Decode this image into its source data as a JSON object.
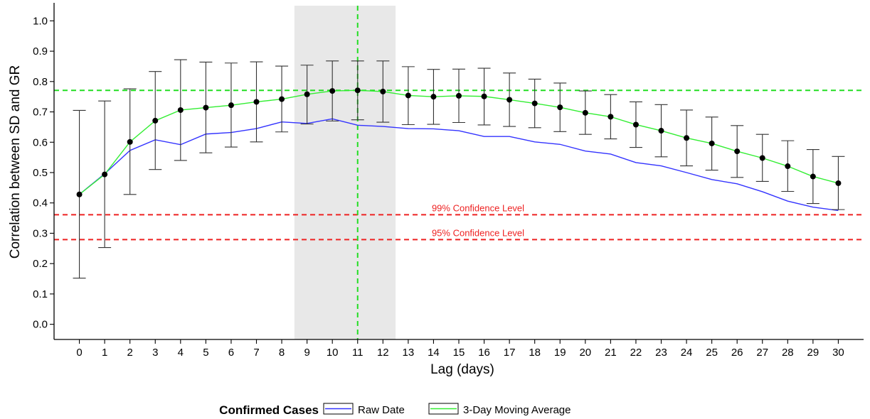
{
  "chart_data": {
    "type": "line",
    "xlabel": "Lag (days)",
    "ylabel": "Correlation between SD and GR",
    "x": [
      0,
      1,
      2,
      3,
      4,
      5,
      6,
      7,
      8,
      9,
      10,
      11,
      12,
      13,
      14,
      15,
      16,
      17,
      18,
      19,
      20,
      21,
      22,
      23,
      24,
      25,
      26,
      27,
      28,
      29,
      30
    ],
    "xlim": [
      -1,
      31
    ],
    "ylim": [
      -0.05,
      1.05
    ],
    "yticks": [
      0.0,
      0.1,
      0.2,
      0.3,
      0.4,
      0.5,
      0.6,
      0.7,
      0.8,
      0.9,
      1.0
    ],
    "ytick_labels": [
      "0.0",
      "0.1",
      "0.2",
      "0.3",
      "0.4",
      "0.5",
      "0.6",
      "0.7",
      "0.8",
      "0.9",
      "1.0"
    ],
    "series": [
      {
        "name": "Raw Date",
        "color": "#3333ff",
        "values": [
          0.428,
          0.496,
          0.573,
          0.608,
          0.592,
          0.627,
          0.632,
          0.645,
          0.667,
          0.662,
          0.677,
          0.656,
          0.652,
          0.645,
          0.644,
          0.638,
          0.619,
          0.619,
          0.601,
          0.593,
          0.571,
          0.561,
          0.533,
          0.522,
          0.5,
          0.477,
          0.463,
          0.437,
          0.406,
          0.386,
          0.375
        ]
      },
      {
        "name": "3-Day Moving Average",
        "color": "#33ee33",
        "values": [
          0.428,
          0.494,
          0.601,
          0.671,
          0.706,
          0.714,
          0.722,
          0.733,
          0.742,
          0.758,
          0.769,
          0.771,
          0.767,
          0.754,
          0.75,
          0.753,
          0.751,
          0.74,
          0.728,
          0.715,
          0.697,
          0.684,
          0.658,
          0.638,
          0.614,
          0.596,
          0.57,
          0.548,
          0.521,
          0.487,
          0.465
        ],
        "lower": [
          0.152,
          0.253,
          0.428,
          0.51,
          0.54,
          0.565,
          0.584,
          0.601,
          0.634,
          0.66,
          0.67,
          0.674,
          0.666,
          0.658,
          0.659,
          0.665,
          0.657,
          0.652,
          0.648,
          0.635,
          0.626,
          0.611,
          0.583,
          0.552,
          0.522,
          0.508,
          0.484,
          0.471,
          0.438,
          0.398,
          0.378
        ],
        "upper": [
          0.705,
          0.736,
          0.776,
          0.833,
          0.872,
          0.864,
          0.861,
          0.865,
          0.851,
          0.854,
          0.868,
          0.868,
          0.868,
          0.849,
          0.84,
          0.841,
          0.844,
          0.828,
          0.808,
          0.795,
          0.769,
          0.757,
          0.733,
          0.724,
          0.706,
          0.683,
          0.655,
          0.626,
          0.605,
          0.576,
          0.553
        ]
      }
    ],
    "reference_lines": [
      {
        "axis": "y",
        "value": 0.771,
        "color": "#22dd22",
        "style": "dashed",
        "label": ""
      },
      {
        "axis": "y",
        "value": 0.361,
        "color": "#ee2222",
        "style": "dashed",
        "label": "99% Confidence Level"
      },
      {
        "axis": "y",
        "value": 0.279,
        "color": "#ee2222",
        "style": "dashed",
        "label": "95% Confidence Level"
      },
      {
        "axis": "x",
        "value": 11,
        "color": "#22dd22",
        "style": "dashed",
        "label": ""
      }
    ],
    "shaded_region": {
      "x_from": 8.5,
      "x_to": 12.5,
      "color": "#e8e8e8"
    },
    "legend": {
      "title": "Confirmed Cases",
      "position": "bottom",
      "entries": [
        "Raw Date",
        "3-Day Moving Average"
      ]
    },
    "grid": false
  }
}
